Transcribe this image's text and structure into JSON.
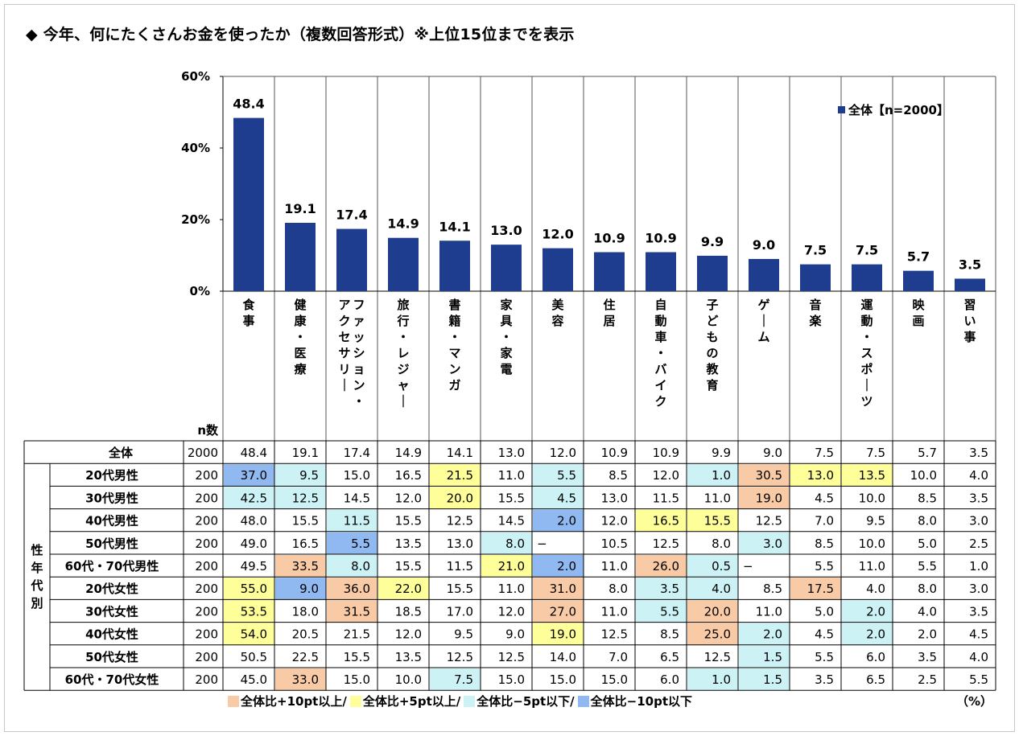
{
  "title": "◆ 今年、何にたくさんお金を使ったか（複数回答形式）※上位15位までを表示",
  "legend_label": "全体【n=2000】",
  "n_header": "n数",
  "side_label": "性年代別",
  "unit": "（%）",
  "colors": {
    "bar": "#1e3d8f",
    "plus10": "#f8cba6",
    "plus5": "#ffff99",
    "minus5": "#ccf2f6",
    "minus10": "#8fb9f0"
  },
  "key": [
    {
      "label": "全体比+10pt以上/",
      "color": "#f8cba6"
    },
    {
      "label": "全体比+5pt以上/",
      "color": "#ffff99"
    },
    {
      "label": "全体比−5pt以下/",
      "color": "#ccf2f6"
    },
    {
      "label": "全体比−10pt以下",
      "color": "#8fb9f0"
    }
  ],
  "chart_data": {
    "type": "bar",
    "categories": [
      "食事",
      "健康・医療",
      "ファッション・アクセサリー",
      "旅行・レジャー",
      "書籍・マンガ",
      "家具・家電",
      "美容",
      "住居",
      "自動車・バイク",
      "子どもの教育",
      "ゲーム",
      "音楽",
      "運動・スポーツ",
      "映画",
      "習い事"
    ],
    "series": [
      {
        "name": "全体【n=2000】",
        "values": [
          48.4,
          19.1,
          17.4,
          14.9,
          14.1,
          13.0,
          12.0,
          10.9,
          10.9,
          9.9,
          9.0,
          7.5,
          7.5,
          5.7,
          3.5
        ]
      }
    ],
    "value_labels": [
      "48.4",
      "19.1",
      "17.4",
      "14.9",
      "14.1",
      "13.0",
      "12.0",
      "10.9",
      "10.9",
      "9.9",
      "9.0",
      "7.5",
      "7.5",
      "5.7",
      "3.5"
    ],
    "yticks": [
      "0%",
      "20%",
      "40%",
      "60%"
    ],
    "ylim": [
      0,
      60
    ],
    "legend_position": "top-right"
  },
  "table": {
    "total": {
      "label": "全体",
      "n": "2000",
      "cells": [
        [
          "48.4",
          ""
        ],
        [
          "19.1",
          ""
        ],
        [
          "17.4",
          ""
        ],
        [
          "14.9",
          ""
        ],
        [
          "14.1",
          ""
        ],
        [
          "13.0",
          ""
        ],
        [
          "12.0",
          ""
        ],
        [
          "10.9",
          ""
        ],
        [
          "10.9",
          ""
        ],
        [
          "9.9",
          ""
        ],
        [
          "9.0",
          ""
        ],
        [
          "7.5",
          ""
        ],
        [
          "7.5",
          ""
        ],
        [
          "5.7",
          ""
        ],
        [
          "3.5",
          ""
        ]
      ]
    },
    "rows": [
      {
        "label": "20代男性",
        "n": "200",
        "cells": [
          [
            "37.0",
            "minus10"
          ],
          [
            "9.5",
            "minus5"
          ],
          [
            "15.0",
            ""
          ],
          [
            "16.5",
            ""
          ],
          [
            "21.5",
            "plus5"
          ],
          [
            "11.0",
            ""
          ],
          [
            "5.5",
            "minus5"
          ],
          [
            "8.5",
            ""
          ],
          [
            "12.0",
            ""
          ],
          [
            "1.0",
            "minus5"
          ],
          [
            "30.5",
            "plus10"
          ],
          [
            "13.0",
            "plus5"
          ],
          [
            "13.5",
            "plus5"
          ],
          [
            "10.0",
            ""
          ],
          [
            "4.0",
            ""
          ]
        ]
      },
      {
        "label": "30代男性",
        "n": "200",
        "cells": [
          [
            "42.5",
            "minus5"
          ],
          [
            "12.5",
            "minus5"
          ],
          [
            "14.5",
            ""
          ],
          [
            "12.0",
            ""
          ],
          [
            "20.0",
            "plus5"
          ],
          [
            "15.5",
            ""
          ],
          [
            "4.5",
            "minus5"
          ],
          [
            "13.0",
            ""
          ],
          [
            "11.5",
            ""
          ],
          [
            "11.0",
            ""
          ],
          [
            "19.0",
            "plus10"
          ],
          [
            "4.5",
            ""
          ],
          [
            "10.0",
            ""
          ],
          [
            "8.5",
            ""
          ],
          [
            "3.5",
            ""
          ]
        ]
      },
      {
        "label": "40代男性",
        "n": "200",
        "cells": [
          [
            "48.0",
            ""
          ],
          [
            "15.5",
            ""
          ],
          [
            "11.5",
            "minus5"
          ],
          [
            "15.5",
            ""
          ],
          [
            "12.5",
            ""
          ],
          [
            "14.5",
            ""
          ],
          [
            "2.0",
            "minus10"
          ],
          [
            "12.0",
            ""
          ],
          [
            "16.5",
            "plus5"
          ],
          [
            "15.5",
            "plus5"
          ],
          [
            "12.5",
            ""
          ],
          [
            "7.0",
            ""
          ],
          [
            "9.5",
            ""
          ],
          [
            "8.0",
            ""
          ],
          [
            "3.0",
            ""
          ]
        ]
      },
      {
        "label": "50代男性",
        "n": "200",
        "cells": [
          [
            "49.0",
            ""
          ],
          [
            "16.5",
            ""
          ],
          [
            "5.5",
            "minus10"
          ],
          [
            "13.5",
            ""
          ],
          [
            "13.0",
            ""
          ],
          [
            "8.0",
            "minus5"
          ],
          [
            "−",
            ""
          ],
          [
            "10.5",
            ""
          ],
          [
            "12.5",
            ""
          ],
          [
            "8.0",
            ""
          ],
          [
            "3.0",
            "minus5"
          ],
          [
            "8.5",
            ""
          ],
          [
            "10.0",
            ""
          ],
          [
            "5.0",
            ""
          ],
          [
            "2.5",
            ""
          ]
        ]
      },
      {
        "label": "60代・70代男性",
        "n": "200",
        "cells": [
          [
            "49.5",
            ""
          ],
          [
            "33.5",
            "plus10"
          ],
          [
            "8.0",
            "minus5"
          ],
          [
            "15.5",
            ""
          ],
          [
            "11.5",
            ""
          ],
          [
            "21.0",
            "plus5"
          ],
          [
            "2.0",
            "minus10"
          ],
          [
            "11.0",
            ""
          ],
          [
            "26.0",
            "plus10"
          ],
          [
            "0.5",
            "minus5"
          ],
          [
            "−",
            ""
          ],
          [
            "5.5",
            ""
          ],
          [
            "11.0",
            ""
          ],
          [
            "5.5",
            ""
          ],
          [
            "1.0",
            ""
          ]
        ]
      },
      {
        "label": "20代女性",
        "n": "200",
        "cells": [
          [
            "55.0",
            "plus5"
          ],
          [
            "9.0",
            "minus10"
          ],
          [
            "36.0",
            "plus10"
          ],
          [
            "22.0",
            "plus5"
          ],
          [
            "15.5",
            ""
          ],
          [
            "11.0",
            ""
          ],
          [
            "31.0",
            "plus10"
          ],
          [
            "8.0",
            ""
          ],
          [
            "3.5",
            "minus5"
          ],
          [
            "4.0",
            "minus5"
          ],
          [
            "8.5",
            ""
          ],
          [
            "17.5",
            "plus10"
          ],
          [
            "4.0",
            ""
          ],
          [
            "8.0",
            ""
          ],
          [
            "3.0",
            ""
          ]
        ]
      },
      {
        "label": "30代女性",
        "n": "200",
        "cells": [
          [
            "53.5",
            "plus5"
          ],
          [
            "18.0",
            ""
          ],
          [
            "31.5",
            "plus10"
          ],
          [
            "18.5",
            ""
          ],
          [
            "17.0",
            ""
          ],
          [
            "12.0",
            ""
          ],
          [
            "27.0",
            "plus10"
          ],
          [
            "11.0",
            ""
          ],
          [
            "5.5",
            "minus5"
          ],
          [
            "20.0",
            "plus10"
          ],
          [
            "11.0",
            ""
          ],
          [
            "5.0",
            ""
          ],
          [
            "2.0",
            "minus5"
          ],
          [
            "4.0",
            ""
          ],
          [
            "3.5",
            ""
          ]
        ]
      },
      {
        "label": "40代女性",
        "n": "200",
        "cells": [
          [
            "54.0",
            "plus5"
          ],
          [
            "20.5",
            ""
          ],
          [
            "21.5",
            ""
          ],
          [
            "12.0",
            ""
          ],
          [
            "9.5",
            ""
          ],
          [
            "9.0",
            ""
          ],
          [
            "19.0",
            "plus5"
          ],
          [
            "12.5",
            ""
          ],
          [
            "8.5",
            ""
          ],
          [
            "25.0",
            "plus10"
          ],
          [
            "2.0",
            "minus5"
          ],
          [
            "4.5",
            ""
          ],
          [
            "2.0",
            "minus5"
          ],
          [
            "2.0",
            ""
          ],
          [
            "4.5",
            ""
          ]
        ]
      },
      {
        "label": "50代女性",
        "n": "200",
        "cells": [
          [
            "50.5",
            ""
          ],
          [
            "22.5",
            ""
          ],
          [
            "15.5",
            ""
          ],
          [
            "13.5",
            ""
          ],
          [
            "12.5",
            ""
          ],
          [
            "12.5",
            ""
          ],
          [
            "14.0",
            ""
          ],
          [
            "7.0",
            ""
          ],
          [
            "6.5",
            ""
          ],
          [
            "12.5",
            ""
          ],
          [
            "1.5",
            "minus5"
          ],
          [
            "5.5",
            ""
          ],
          [
            "6.0",
            ""
          ],
          [
            "3.5",
            ""
          ],
          [
            "4.0",
            ""
          ]
        ]
      },
      {
        "label": "60代・70代女性",
        "n": "200",
        "cells": [
          [
            "45.0",
            ""
          ],
          [
            "33.0",
            "plus10"
          ],
          [
            "15.0",
            ""
          ],
          [
            "10.0",
            ""
          ],
          [
            "7.5",
            "minus5"
          ],
          [
            "15.0",
            ""
          ],
          [
            "15.0",
            ""
          ],
          [
            "15.0",
            ""
          ],
          [
            "6.0",
            ""
          ],
          [
            "1.0",
            "minus5"
          ],
          [
            "1.5",
            "minus5"
          ],
          [
            "3.5",
            ""
          ],
          [
            "6.5",
            ""
          ],
          [
            "2.5",
            ""
          ],
          [
            "5.5",
            ""
          ]
        ]
      }
    ]
  }
}
